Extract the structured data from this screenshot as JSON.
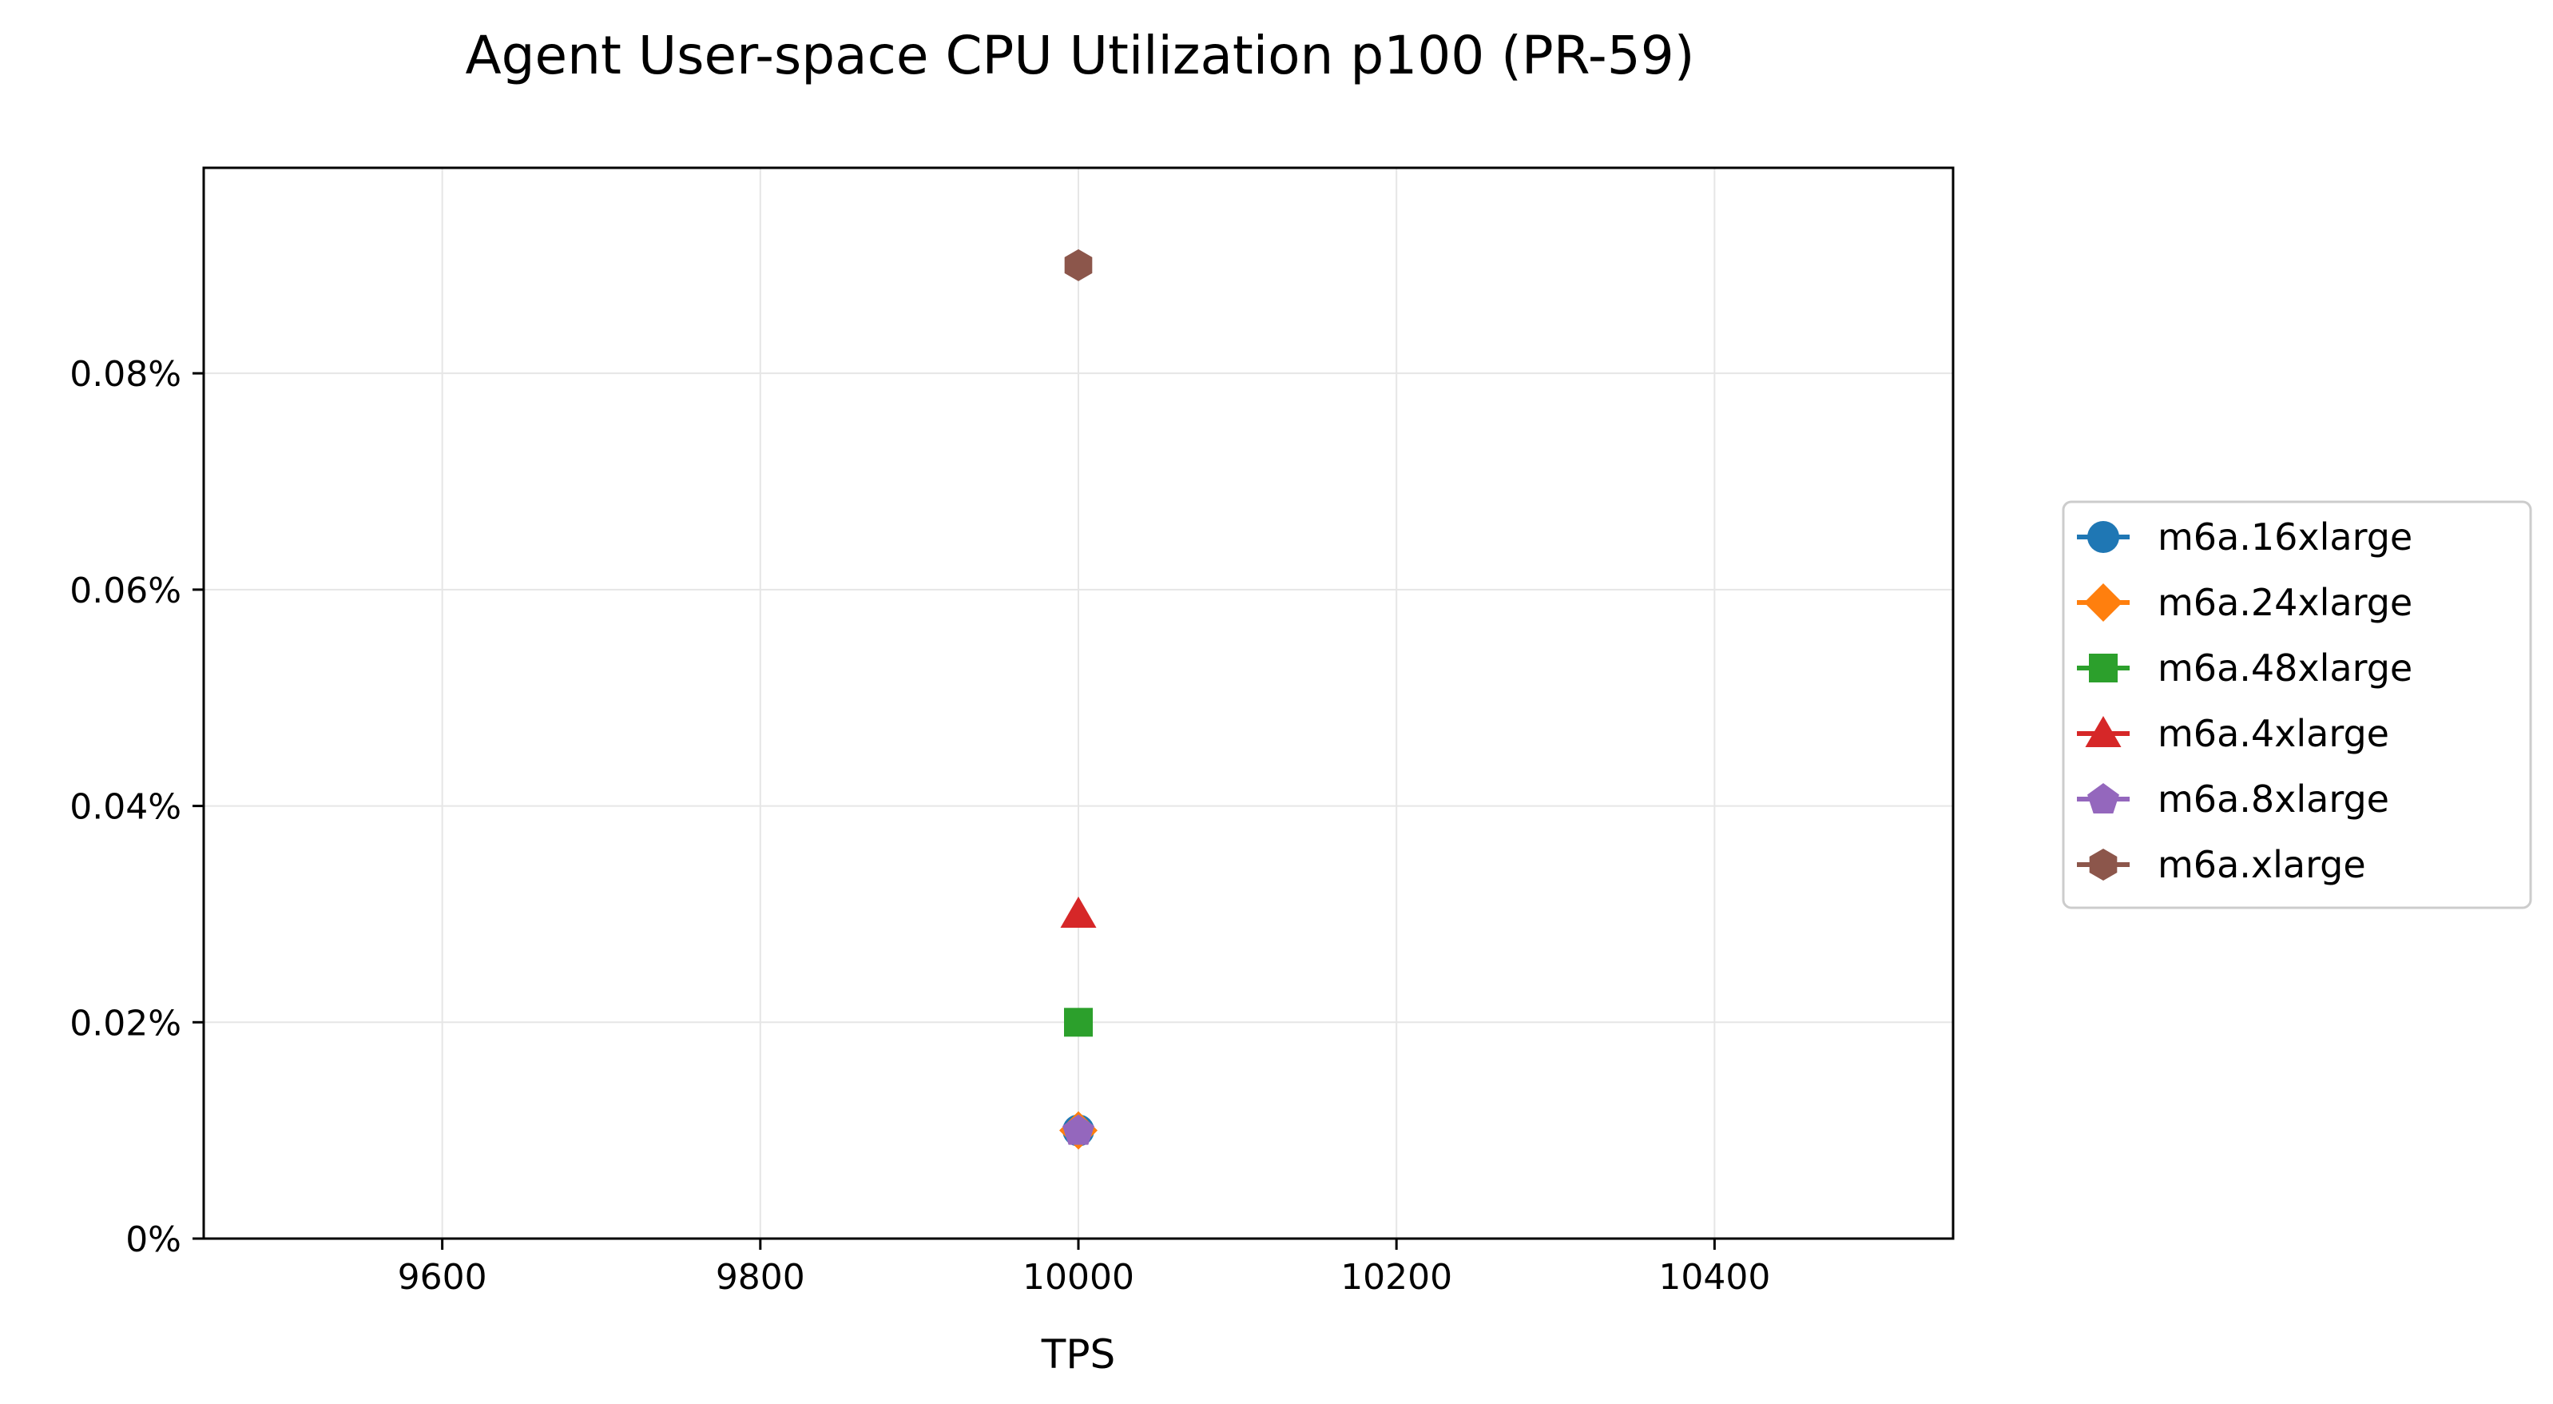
{
  "chart_data": {
    "type": "scatter",
    "title": "Agent User-space CPU Utilization p100 (PR-59)",
    "xlabel": "TPS",
    "ylabel": "",
    "xlim": [
      9450,
      10550
    ],
    "ylim": [
      0,
      0.099
    ],
    "x_ticks": [
      9600,
      9800,
      10000,
      10200,
      10400
    ],
    "x_tick_labels": [
      "9600",
      "9800",
      "10000",
      "10200",
      "10400"
    ],
    "y_ticks": [
      0,
      0.02,
      0.04,
      0.06,
      0.08
    ],
    "y_tick_labels": [
      "0%",
      "0.02%",
      "0.04%",
      "0.06%",
      "0.08%"
    ],
    "grid": true,
    "legend_position": "right, outside plot",
    "series": [
      {
        "name": "m6a.16xlarge",
        "marker": "circle",
        "color": "#1f77b4",
        "points": [
          {
            "x": 10000,
            "y": 0.01
          }
        ]
      },
      {
        "name": "m6a.24xlarge",
        "marker": "diamond",
        "color": "#ff7f0e",
        "points": [
          {
            "x": 10000,
            "y": 0.01
          }
        ]
      },
      {
        "name": "m6a.48xlarge",
        "marker": "square",
        "color": "#2ca02c",
        "points": [
          {
            "x": 10000,
            "y": 0.02
          }
        ]
      },
      {
        "name": "m6a.4xlarge",
        "marker": "triangle",
        "color": "#d62728",
        "points": [
          {
            "x": 10000,
            "y": 0.03
          }
        ]
      },
      {
        "name": "m6a.8xlarge",
        "marker": "pentagon",
        "color": "#9467bd",
        "points": [
          {
            "x": 10000,
            "y": 0.01
          }
        ]
      },
      {
        "name": "m6a.xlarge",
        "marker": "hexagon",
        "color": "#8c564b",
        "points": [
          {
            "x": 10000,
            "y": 0.09
          }
        ]
      }
    ]
  }
}
